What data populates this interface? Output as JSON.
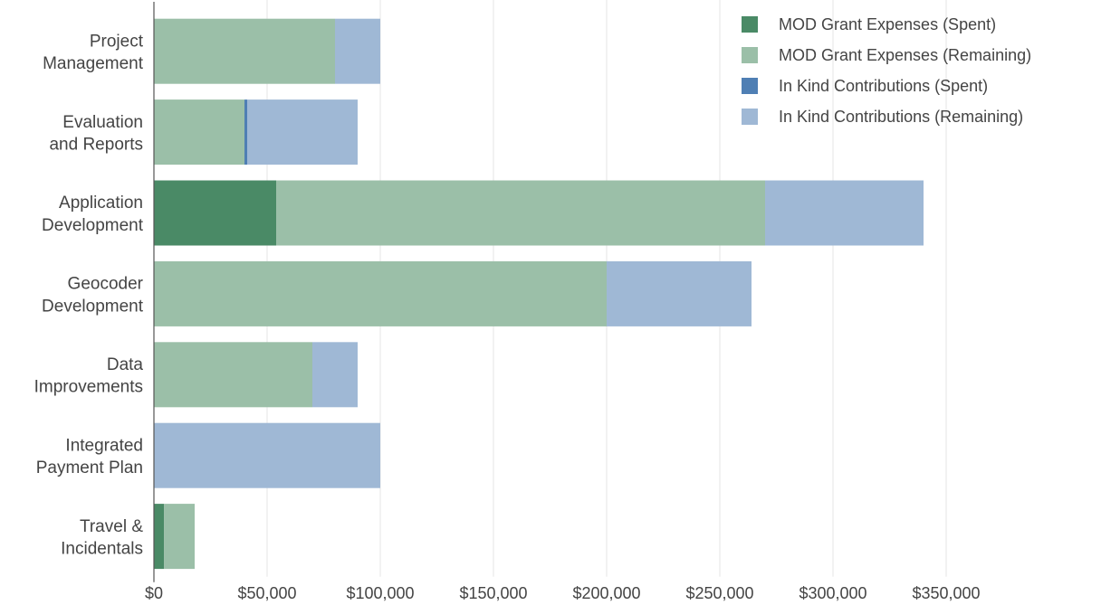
{
  "chart_data": {
    "type": "bar",
    "orientation": "horizontal",
    "stacked": true,
    "title": "",
    "xlabel": "",
    "ylabel": "",
    "categories": [
      [
        "Project",
        "Management"
      ],
      [
        "Evaluation",
        "and Reports"
      ],
      [
        "Application",
        "Development"
      ],
      [
        "Geocoder",
        "Development"
      ],
      [
        "Data",
        "Improvements"
      ],
      [
        "Integrated",
        "Payment Plan"
      ],
      [
        "Travel &",
        "Incidentals"
      ]
    ],
    "series": [
      {
        "name": "MOD Grant Expenses (Spent)",
        "color": "#4a8a66",
        "values": [
          0,
          0,
          54000,
          0,
          0,
          0,
          4500
        ]
      },
      {
        "name": "MOD Grant Expenses (Remaining)",
        "color": "#9bbfa8",
        "values": [
          80000,
          40000,
          216000,
          200000,
          70000,
          0,
          13500
        ]
      },
      {
        "name": "In Kind Contributions (Spent)",
        "color": "#4f7fb4",
        "values": [
          0,
          1200,
          0,
          0,
          0,
          0,
          0
        ]
      },
      {
        "name": "In Kind Contributions (Remaining)",
        "color": "#9fb8d5",
        "values": [
          20000,
          48800,
          70000,
          64000,
          20000,
          100000,
          0
        ]
      }
    ],
    "xlim": [
      0,
      375000
    ],
    "xticks": [
      0,
      50000,
      100000,
      150000,
      200000,
      250000,
      300000,
      350000
    ],
    "xtick_labels": [
      "$0",
      "$50,000",
      "$100,000",
      "$150,000",
      "$200,000",
      "$250,000",
      "$300,000",
      "$350,000"
    ],
    "grid": "vertical",
    "legend_position": "top-right"
  }
}
